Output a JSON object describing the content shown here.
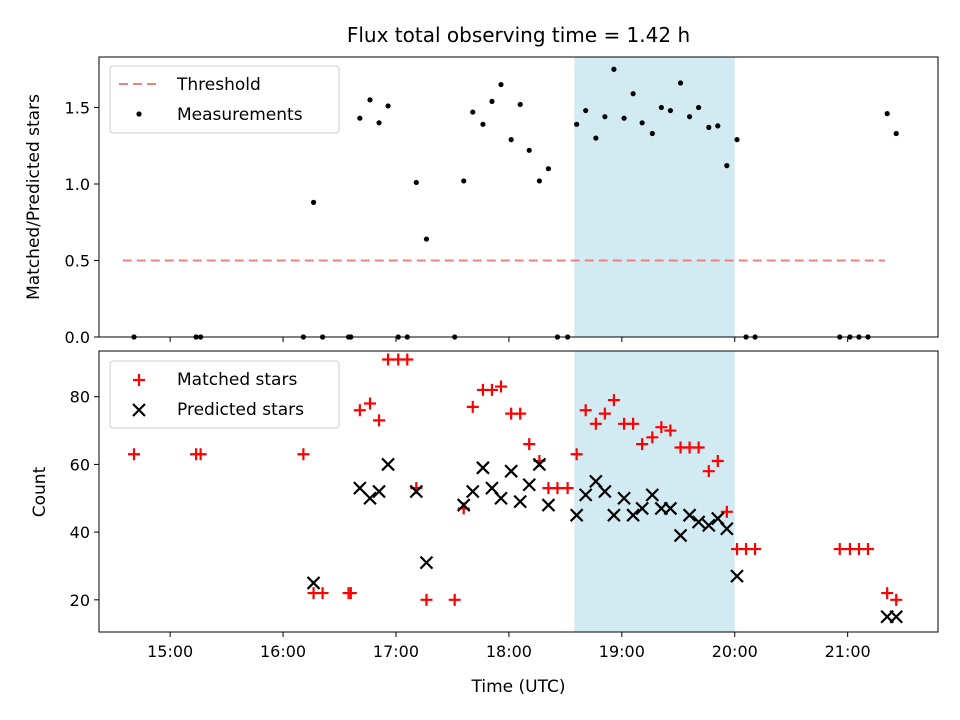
{
  "title": "Flux total observing time = 1.42 h",
  "colors": {
    "threshold": "#f08080",
    "measurement": "#000000",
    "matched": "#ff0000",
    "predicted": "#000000",
    "span": "#add8e6"
  },
  "chart_data": [
    {
      "type": "scatter",
      "ylabel": "Matched/Predicted stars",
      "ylim": [
        0,
        1.83
      ],
      "yticks": [
        "0.0",
        "0.5",
        "1.0",
        "1.5"
      ],
      "xlim": [
        14.37,
        21.8
      ],
      "highlight_span": [
        18.58,
        20.0
      ],
      "legend": {
        "placement": "upper-left",
        "threshold": "Threshold",
        "measurements": "Measurements"
      },
      "threshold": {
        "name": "Threshold",
        "y": 0.5,
        "x_range": [
          14.58,
          21.33
        ]
      },
      "series": [
        {
          "name": "Measurements",
          "x": [
            14.68,
            15.23,
            15.27,
            16.18,
            16.27,
            16.35,
            16.58,
            16.6,
            16.68,
            16.77,
            16.85,
            16.93,
            17.02,
            17.1,
            17.18,
            17.27,
            17.52,
            17.6,
            17.68,
            17.77,
            17.85,
            17.93,
            18.02,
            18.1,
            18.18,
            18.27,
            18.35,
            18.43,
            18.52,
            18.6,
            18.68,
            18.77,
            18.85,
            18.93,
            19.02,
            19.1,
            19.18,
            19.27,
            19.35,
            19.43,
            19.52,
            19.6,
            19.68,
            19.77,
            19.85,
            19.93,
            20.02,
            20.1,
            20.18,
            20.93,
            21.02,
            21.1,
            21.18,
            21.35,
            21.43
          ],
          "y": [
            0,
            0,
            0,
            0,
            0.88,
            0,
            0,
            0,
            1.43,
            1.55,
            1.4,
            1.51,
            0,
            0,
            1.01,
            0.64,
            0,
            1.02,
            1.47,
            1.39,
            1.54,
            1.65,
            1.29,
            1.52,
            1.22,
            1.02,
            1.1,
            0,
            0,
            1.39,
            1.48,
            1.3,
            1.44,
            1.75,
            1.43,
            1.59,
            1.4,
            1.33,
            1.5,
            1.48,
            1.66,
            1.44,
            1.5,
            1.37,
            1.38,
            1.12,
            1.29,
            0,
            0,
            0,
            0,
            0,
            0,
            1.46,
            1.33
          ]
        }
      ]
    },
    {
      "type": "scatter",
      "xlabel": "Time (UTC)",
      "ylabel": "Count",
      "ylim": [
        10.5,
        93.5
      ],
      "yticks": [
        "20",
        "40",
        "60",
        "80"
      ],
      "xlim": [
        14.37,
        21.8
      ],
      "xticks": [
        {
          "v": 15,
          "label": "15:00"
        },
        {
          "v": 16,
          "label": "16:00"
        },
        {
          "v": 17,
          "label": "17:00"
        },
        {
          "v": 18,
          "label": "18:00"
        },
        {
          "v": 19,
          "label": "19:00"
        },
        {
          "v": 20,
          "label": "20:00"
        },
        {
          "v": 21,
          "label": "21:00"
        }
      ],
      "highlight_span": [
        18.58,
        20.0
      ],
      "legend": {
        "placement": "upper-left",
        "matched": "Matched stars",
        "predicted": "Predicted stars"
      },
      "series": [
        {
          "name": "Matched stars",
          "marker": "plus",
          "x": [
            14.68,
            15.23,
            15.27,
            16.18,
            16.27,
            16.35,
            16.58,
            16.6,
            16.68,
            16.77,
            16.85,
            16.93,
            17.02,
            17.1,
            17.18,
            17.27,
            17.52,
            17.6,
            17.68,
            17.77,
            17.85,
            17.93,
            18.02,
            18.1,
            18.18,
            18.27,
            18.35,
            18.43,
            18.52,
            18.6,
            18.68,
            18.77,
            18.85,
            18.93,
            19.02,
            19.1,
            19.18,
            19.27,
            19.35,
            19.43,
            19.52,
            19.6,
            19.68,
            19.77,
            19.85,
            19.93,
            20.02,
            20.1,
            20.18,
            20.93,
            21.02,
            21.1,
            21.18,
            21.35,
            21.43
          ],
          "y": [
            63,
            63,
            63,
            63,
            22,
            22,
            22,
            22,
            76,
            78,
            73,
            91,
            91,
            91,
            53,
            20,
            20,
            47,
            77,
            82,
            82,
            83,
            75,
            75,
            66,
            61,
            53,
            53,
            53,
            63,
            76,
            72,
            75,
            79,
            72,
            72,
            66,
            68,
            71,
            70,
            65,
            65,
            65,
            58,
            61,
            46,
            35,
            35,
            35,
            35,
            35,
            35,
            35,
            22,
            20
          ]
        },
        {
          "name": "Predicted stars",
          "marker": "x",
          "x": [
            16.27,
            16.68,
            16.77,
            16.85,
            16.93,
            17.18,
            17.27,
            17.6,
            17.68,
            17.77,
            17.85,
            17.93,
            18.02,
            18.1,
            18.18,
            18.27,
            18.35,
            18.6,
            18.68,
            18.77,
            18.85,
            18.93,
            19.02,
            19.1,
            19.18,
            19.27,
            19.35,
            19.43,
            19.52,
            19.6,
            19.68,
            19.77,
            19.85,
            19.93,
            20.02,
            21.35,
            21.43
          ],
          "y": [
            25,
            53,
            50,
            52,
            60,
            52,
            31,
            48,
            52,
            59,
            53,
            50,
            58,
            49,
            54,
            60,
            48,
            45,
            51,
            55,
            52,
            45,
            50,
            45,
            47,
            51,
            47,
            47,
            39,
            45,
            43,
            42,
            44,
            41,
            27,
            15,
            15
          ]
        }
      ]
    }
  ]
}
